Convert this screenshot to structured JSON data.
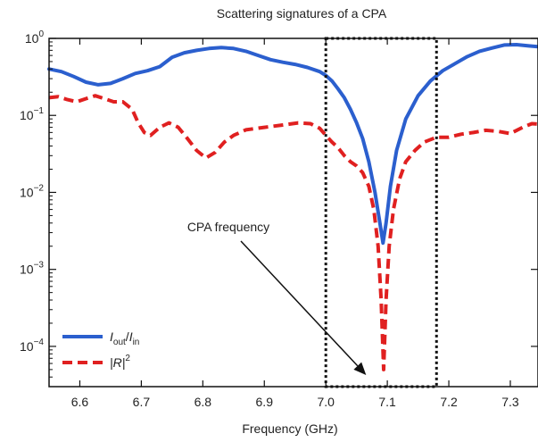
{
  "chart_data": {
    "type": "line",
    "title": "Scattering signatures of a CPA",
    "xlabel": "Frequency (GHz)",
    "ylabel": "",
    "xlim": [
      6.55,
      7.345
    ],
    "ylim": [
      3e-05,
      1
    ],
    "yscale": "log",
    "grid": false,
    "legend_position": "bottom-left",
    "x_ticks": [
      6.6,
      6.7,
      6.8,
      6.9,
      7.0,
      7.1,
      7.2,
      7.3
    ],
    "x_tick_labels": [
      "6.6",
      "6.7",
      "6.8",
      "6.9",
      "7.0",
      "7.1",
      "7.2",
      "7.3"
    ],
    "y_ticks": [
      {
        "value": 1,
        "base": "10",
        "exp": "0"
      },
      {
        "value": 0.1,
        "base": "10",
        "exp": "−1"
      },
      {
        "value": 0.01,
        "base": "10",
        "exp": "−2"
      },
      {
        "value": 0.001,
        "base": "10",
        "exp": "−3"
      },
      {
        "value": 0.0001,
        "base": "10",
        "exp": "−4"
      }
    ],
    "series": [
      {
        "name_main": "I",
        "name_sub1": "out",
        "name_sep": "/",
        "name_main2": "I",
        "name_sub2": "in",
        "color": "#2b5fce",
        "style": "solid",
        "points": [
          [
            6.55,
            0.4
          ],
          [
            6.57,
            0.37
          ],
          [
            6.59,
            0.32
          ],
          [
            6.61,
            0.27
          ],
          [
            6.63,
            0.25
          ],
          [
            6.65,
            0.26
          ],
          [
            6.67,
            0.3
          ],
          [
            6.69,
            0.35
          ],
          [
            6.71,
            0.38
          ],
          [
            6.73,
            0.43
          ],
          [
            6.75,
            0.57
          ],
          [
            6.77,
            0.65
          ],
          [
            6.79,
            0.7
          ],
          [
            6.81,
            0.74
          ],
          [
            6.83,
            0.76
          ],
          [
            6.85,
            0.74
          ],
          [
            6.87,
            0.68
          ],
          [
            6.89,
            0.6
          ],
          [
            6.91,
            0.53
          ],
          [
            6.93,
            0.49
          ],
          [
            6.95,
            0.46
          ],
          [
            6.97,
            0.42
          ],
          [
            6.99,
            0.37
          ],
          [
            7.0,
            0.33
          ],
          [
            7.01,
            0.28
          ],
          [
            7.02,
            0.22
          ],
          [
            7.03,
            0.17
          ],
          [
            7.04,
            0.12
          ],
          [
            7.05,
            0.08
          ],
          [
            7.06,
            0.05
          ],
          [
            7.07,
            0.025
          ],
          [
            7.08,
            0.01
          ],
          [
            7.088,
            0.004
          ],
          [
            7.093,
            0.0022
          ],
          [
            7.098,
            0.004
          ],
          [
            7.105,
            0.012
          ],
          [
            7.115,
            0.035
          ],
          [
            7.13,
            0.09
          ],
          [
            7.15,
            0.18
          ],
          [
            7.17,
            0.28
          ],
          [
            7.19,
            0.38
          ],
          [
            7.21,
            0.47
          ],
          [
            7.23,
            0.58
          ],
          [
            7.25,
            0.68
          ],
          [
            7.27,
            0.75
          ],
          [
            7.29,
            0.82
          ],
          [
            7.31,
            0.83
          ],
          [
            7.33,
            0.8
          ],
          [
            7.345,
            0.78
          ]
        ]
      },
      {
        "name_main": "|R|",
        "name_sup": "2",
        "color": "#e02020",
        "style": "dashed",
        "points": [
          [
            6.55,
            0.17
          ],
          [
            6.565,
            0.175
          ],
          [
            6.58,
            0.16
          ],
          [
            6.595,
            0.15
          ],
          [
            6.61,
            0.165
          ],
          [
            6.625,
            0.18
          ],
          [
            6.64,
            0.165
          ],
          [
            6.655,
            0.15
          ],
          [
            6.67,
            0.15
          ],
          [
            6.685,
            0.12
          ],
          [
            6.695,
            0.08
          ],
          [
            6.705,
            0.06
          ],
          [
            6.715,
            0.055
          ],
          [
            6.73,
            0.07
          ],
          [
            6.745,
            0.08
          ],
          [
            6.76,
            0.07
          ],
          [
            6.775,
            0.05
          ],
          [
            6.79,
            0.035
          ],
          [
            6.805,
            0.028
          ],
          [
            6.82,
            0.033
          ],
          [
            6.835,
            0.045
          ],
          [
            6.85,
            0.055
          ],
          [
            6.87,
            0.065
          ],
          [
            6.9,
            0.07
          ],
          [
            6.93,
            0.075
          ],
          [
            6.955,
            0.08
          ],
          [
            6.975,
            0.078
          ],
          [
            6.99,
            0.068
          ],
          [
            7.0,
            0.055
          ],
          [
            7.01,
            0.045
          ],
          [
            7.02,
            0.038
          ],
          [
            7.03,
            0.03
          ],
          [
            7.04,
            0.025
          ],
          [
            7.05,
            0.022
          ],
          [
            7.06,
            0.018
          ],
          [
            7.07,
            0.012
          ],
          [
            7.078,
            0.006
          ],
          [
            7.085,
            0.002
          ],
          [
            7.09,
            0.0004
          ],
          [
            7.094,
            5e-05
          ],
          [
            7.098,
            0.0004
          ],
          [
            7.103,
            0.002
          ],
          [
            7.11,
            0.006
          ],
          [
            7.12,
            0.015
          ],
          [
            7.13,
            0.025
          ],
          [
            7.145,
            0.035
          ],
          [
            7.16,
            0.045
          ],
          [
            7.18,
            0.052
          ],
          [
            7.2,
            0.052
          ],
          [
            7.22,
            0.057
          ],
          [
            7.24,
            0.06
          ],
          [
            7.26,
            0.064
          ],
          [
            7.28,
            0.062
          ],
          [
            7.3,
            0.058
          ],
          [
            7.32,
            0.07
          ],
          [
            7.335,
            0.078
          ],
          [
            7.345,
            0.077
          ]
        ]
      }
    ],
    "highlight_box": {
      "x0": 7.0,
      "x1": 7.18
    },
    "annotation": {
      "text": "CPA frequency",
      "points_to": [
        7.08,
        3e-05
      ]
    }
  }
}
